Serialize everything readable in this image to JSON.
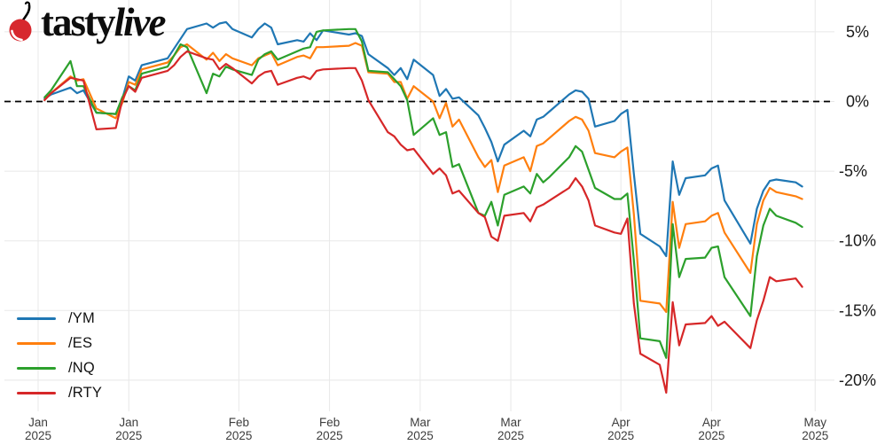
{
  "logo": {
    "brand_regular": "tasty",
    "brand_italic": "live"
  },
  "legend": {
    "position": "bottom-left"
  },
  "chart_data": {
    "type": "line",
    "title": "",
    "background": "#ffffff",
    "grid_color": "#e8e8e8",
    "grid": true,
    "legend_position": "lower left",
    "ylim": [
      -22.5,
      7
    ],
    "zero_line": {
      "value": 0,
      "style": "dashed",
      "color": "#000000"
    },
    "y_axis": {
      "side": "right",
      "ticks": [
        {
          "label": "5%",
          "value": 5
        },
        {
          "label": "0%",
          "value": 0
        },
        {
          "label": "-5%",
          "value": -5
        },
        {
          "label": "-10%",
          "value": -10
        },
        {
          "label": "-15%",
          "value": -15
        },
        {
          "label": "-20%",
          "value": -20
        }
      ]
    },
    "x_axis": {
      "unit": "date",
      "ticks": [
        {
          "label": "Jan",
          "year": "2025",
          "day": 0
        },
        {
          "label": "Jan",
          "year": "2025",
          "day": 14
        },
        {
          "label": "Feb",
          "year": "2025",
          "day": 31
        },
        {
          "label": "Feb",
          "year": "2025",
          "day": 45
        },
        {
          "label": "Mar",
          "year": "2025",
          "day": 59
        },
        {
          "label": "Mar",
          "year": "2025",
          "day": 73
        },
        {
          "label": "Apr",
          "year": "2025",
          "day": 90
        },
        {
          "label": "Apr",
          "year": "2025",
          "day": 104
        },
        {
          "label": "May",
          "year": "2025",
          "day": 120
        }
      ]
    },
    "dates": [
      "Jan 2",
      "Jan 3",
      "Jan 6",
      "Jan 7",
      "Jan 8",
      "Jan 10",
      "Jan 13",
      "Jan 14",
      "Jan 15",
      "Jan 16",
      "Jan 17",
      "Jan 21",
      "Jan 22",
      "Jan 23",
      "Jan 24",
      "Jan 27",
      "Jan 28",
      "Jan 29",
      "Jan 30",
      "Jan 31",
      "Feb 3",
      "Feb 4",
      "Feb 5",
      "Feb 6",
      "Feb 7",
      "Feb 10",
      "Feb 11",
      "Feb 12",
      "Feb 13",
      "Feb 14",
      "Feb 18",
      "Feb 19",
      "Feb 20",
      "Feb 21",
      "Feb 24",
      "Feb 25",
      "Feb 26",
      "Feb 27",
      "Feb 28",
      "Mar 3",
      "Mar 4",
      "Mar 5",
      "Mar 6",
      "Mar 7",
      "Mar 10",
      "Mar 11",
      "Mar 12",
      "Mar 13",
      "Mar 14",
      "Mar 17",
      "Mar 18",
      "Mar 19",
      "Mar 20",
      "Mar 21",
      "Mar 24",
      "Mar 25",
      "Mar 26",
      "Mar 27",
      "Mar 28",
      "Mar 31",
      "Apr 1",
      "Apr 2",
      "Apr 3",
      "Apr 4",
      "Apr 7",
      "Apr 8",
      "Apr 9",
      "Apr 10",
      "Apr 11",
      "Apr 14",
      "Apr 15",
      "Apr 16",
      "Apr 17",
      "Apr 21",
      "Apr 22",
      "Apr 23",
      "Apr 24",
      "Apr 25",
      "Apr 28",
      "Apr 29"
    ],
    "day_offsets": [
      1,
      2,
      5,
      6,
      7,
      9,
      12,
      13,
      14,
      15,
      16,
      20,
      21,
      22,
      23,
      26,
      27,
      28,
      29,
      30,
      33,
      34,
      35,
      36,
      37,
      40,
      41,
      42,
      43,
      44,
      48,
      49,
      50,
      51,
      54,
      55,
      56,
      57,
      58,
      61,
      62,
      63,
      64,
      65,
      68,
      69,
      70,
      71,
      72,
      75,
      76,
      77,
      78,
      79,
      82,
      83,
      84,
      85,
      86,
      89,
      90,
      91,
      92,
      93,
      96,
      97,
      98,
      99,
      100,
      103,
      104,
      105,
      106,
      110,
      111,
      112,
      113,
      114,
      117,
      118
    ],
    "value_unit": "percent YTD return",
    "series": [
      {
        "name": "/YM",
        "color": "#1f77b4",
        "values": [
          0.2,
          0.5,
          1.0,
          0.6,
          0.8,
          -0.8,
          -0.9,
          0.2,
          1.8,
          1.5,
          2.6,
          3.1,
          3.8,
          4.5,
          5.2,
          5.6,
          5.3,
          5.6,
          5.7,
          5.2,
          4.6,
          5.2,
          5.6,
          5.3,
          4.1,
          4.4,
          4.3,
          4.9,
          4.4,
          5.1,
          4.8,
          4.9,
          4.7,
          3.4,
          2.4,
          1.9,
          2.4,
          1.6,
          3.0,
          1.9,
          0.4,
          0.9,
          0.2,
          0.3,
          -1.0,
          -1.9,
          -2.9,
          -4.3,
          -3.1,
          -2.1,
          -2.5,
          -1.3,
          -1.1,
          -0.7,
          0.5,
          0.8,
          0.7,
          0.2,
          -1.8,
          -1.4,
          -0.9,
          -0.6,
          -5.2,
          -9.5,
          -10.4,
          -11.1,
          -4.3,
          -6.7,
          -5.5,
          -5.3,
          -4.8,
          -4.6,
          -7.1,
          -10.2,
          -7.7,
          -6.4,
          -5.7,
          -5.6,
          -5.8,
          -6.1
        ]
      },
      {
        "name": "/ES",
        "color": "#ff7f0e",
        "values": [
          0.1,
          0.6,
          1.8,
          1.5,
          1.6,
          -0.5,
          -1.2,
          -0.1,
          1.4,
          1.2,
          2.3,
          2.8,
          3.3,
          3.9,
          4.1,
          3.0,
          3.5,
          2.9,
          3.4,
          3.1,
          2.6,
          3.1,
          3.3,
          3.5,
          2.6,
          3.2,
          3.3,
          3.1,
          3.9,
          3.9,
          4.0,
          4.2,
          4.0,
          2.1,
          2.0,
          1.4,
          1.4,
          0.2,
          1.1,
          0.0,
          -1.2,
          -0.1,
          -1.8,
          -1.3,
          -4.0,
          -4.7,
          -4.2,
          -6.5,
          -4.6,
          -4.0,
          -5.0,
          -3.2,
          -3.0,
          -2.6,
          -1.4,
          -1.1,
          -1.3,
          -2.1,
          -3.7,
          -4.0,
          -3.6,
          -3.3,
          -8.1,
          -14.3,
          -14.5,
          -15.1,
          -7.2,
          -10.5,
          -8.8,
          -8.6,
          -8.2,
          -8.0,
          -9.4,
          -12.3,
          -8.8,
          -7.1,
          -6.2,
          -6.5,
          -6.8,
          -7.0
        ]
      },
      {
        "name": "/NQ",
        "color": "#2ca02c",
        "values": [
          0.3,
          0.8,
          2.9,
          1.1,
          1.1,
          -0.8,
          -0.9,
          0.3,
          1.1,
          0.8,
          2.0,
          2.5,
          3.3,
          4.1,
          3.9,
          0.6,
          2.0,
          1.8,
          2.5,
          2.3,
          1.9,
          3.0,
          3.4,
          3.6,
          3.0,
          3.6,
          3.8,
          3.9,
          5.0,
          5.1,
          5.2,
          5.2,
          4.3,
          2.2,
          2.1,
          1.6,
          1.1,
          0.1,
          -2.4,
          -1.2,
          -2.4,
          -2.2,
          -4.7,
          -4.5,
          -8.0,
          -8.2,
          -7.2,
          -8.9,
          -6.7,
          -6.1,
          -6.6,
          -5.2,
          -5.8,
          -5.4,
          -4.0,
          -3.2,
          -3.6,
          -4.9,
          -6.2,
          -7.0,
          -7.0,
          -6.6,
          -11.4,
          -17.0,
          -17.2,
          -18.4,
          -8.8,
          -12.6,
          -11.3,
          -11.2,
          -10.5,
          -10.4,
          -12.6,
          -15.4,
          -11.1,
          -8.9,
          -7.7,
          -8.2,
          -8.7,
          -9.0
        ]
      },
      {
        "name": "/RTY",
        "color": "#d62728",
        "values": [
          0.1,
          0.6,
          1.7,
          1.6,
          1.5,
          -2.0,
          -1.9,
          0.1,
          1.1,
          0.7,
          1.7,
          2.2,
          2.6,
          3.2,
          3.6,
          3.1,
          3.0,
          2.3,
          2.7,
          2.4,
          1.3,
          1.8,
          2.1,
          2.2,
          1.2,
          1.7,
          1.8,
          1.6,
          2.2,
          2.3,
          2.4,
          2.4,
          1.5,
          0.1,
          -2.2,
          -2.5,
          -3.1,
          -3.5,
          -3.4,
          -5.2,
          -4.8,
          -5.3,
          -6.6,
          -6.4,
          -8.0,
          -8.3,
          -9.7,
          -10.0,
          -8.2,
          -8.0,
          -8.6,
          -7.6,
          -7.4,
          -7.1,
          -6.2,
          -5.5,
          -6.1,
          -7.1,
          -8.9,
          -9.4,
          -9.5,
          -8.4,
          -14.5,
          -18.1,
          -18.9,
          -20.9,
          -14.4,
          -17.5,
          -16.0,
          -15.9,
          -15.4,
          -16.1,
          -15.8,
          -17.7,
          -15.7,
          -14.3,
          -12.6,
          -12.9,
          -12.7,
          -13.3
        ]
      }
    ]
  }
}
